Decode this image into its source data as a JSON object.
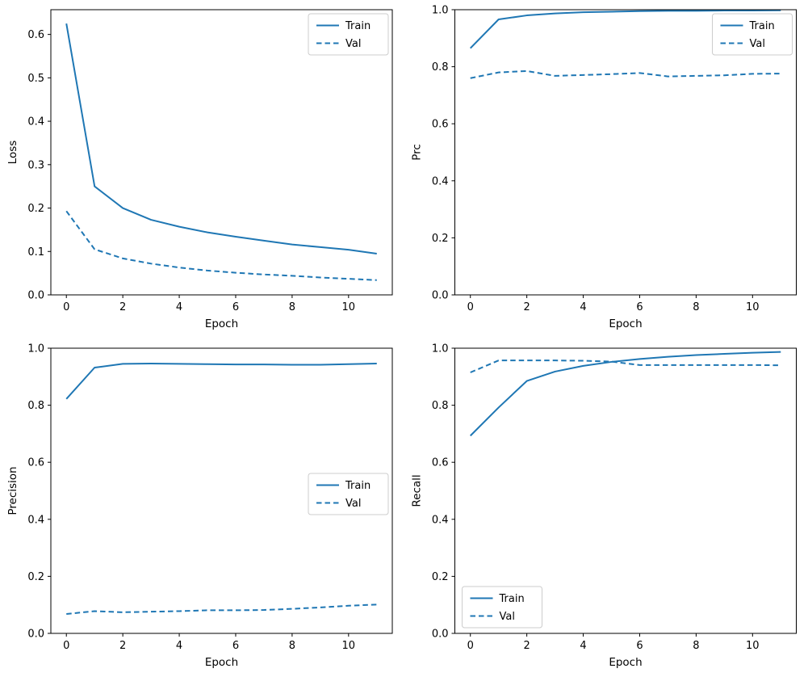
{
  "figure": {
    "background": "#ffffff",
    "line_color": "#1f77b4",
    "legend_border_color": "#cccccc",
    "legend_labels": [
      "Train",
      "Val"
    ]
  },
  "chart_data": [
    {
      "id": "loss",
      "type": "line",
      "title": "",
      "xlabel": "Epoch",
      "ylabel": "Loss",
      "x": [
        0,
        1,
        2,
        3,
        4,
        5,
        6,
        7,
        8,
        9,
        10,
        11
      ],
      "series": [
        {
          "name": "Train",
          "style": "solid",
          "values": [
            0.625,
            0.25,
            0.2,
            0.173,
            0.157,
            0.144,
            0.134,
            0.125,
            0.116,
            0.11,
            0.104,
            0.095
          ]
        },
        {
          "name": "Val",
          "style": "dashed",
          "values": [
            0.193,
            0.105,
            0.084,
            0.072,
            0.063,
            0.056,
            0.051,
            0.047,
            0.044,
            0.04,
            0.037,
            0.034
          ]
        }
      ],
      "xlim": [
        -0.55,
        11.55
      ],
      "ylim": [
        0,
        0.657
      ],
      "xticks": [
        0,
        2,
        4,
        6,
        8,
        10
      ],
      "yticks": [
        0.0,
        0.1,
        0.2,
        0.3,
        0.4,
        0.5,
        0.6
      ],
      "ytick_decimals": 1,
      "grid": false,
      "legend_loc": "upper-right"
    },
    {
      "id": "prc",
      "type": "line",
      "title": "",
      "xlabel": "Epoch",
      "ylabel": "Prc",
      "x": [
        0,
        1,
        2,
        3,
        4,
        5,
        6,
        7,
        8,
        9,
        10,
        11
      ],
      "series": [
        {
          "name": "Train",
          "style": "solid",
          "values": [
            0.865,
            0.966,
            0.98,
            0.987,
            0.991,
            0.993,
            0.995,
            0.996,
            0.996,
            0.997,
            0.997,
            0.998
          ]
        },
        {
          "name": "Val",
          "style": "dashed",
          "values": [
            0.76,
            0.78,
            0.785,
            0.768,
            0.771,
            0.774,
            0.778,
            0.766,
            0.768,
            0.77,
            0.775,
            0.776
          ]
        }
      ],
      "xlim": [
        -0.55,
        11.55
      ],
      "ylim": [
        0,
        1.0
      ],
      "xticks": [
        0,
        2,
        4,
        6,
        8,
        10
      ],
      "yticks": [
        0.0,
        0.2,
        0.4,
        0.6,
        0.8,
        1.0
      ],
      "ytick_decimals": 1,
      "grid": false,
      "legend_loc": "upper-right"
    },
    {
      "id": "precision",
      "type": "line",
      "title": "",
      "xlabel": "Epoch",
      "ylabel": "Precision",
      "x": [
        0,
        1,
        2,
        3,
        4,
        5,
        6,
        7,
        8,
        9,
        10,
        11
      ],
      "series": [
        {
          "name": "Train",
          "style": "solid",
          "values": [
            0.822,
            0.932,
            0.945,
            0.946,
            0.945,
            0.944,
            0.943,
            0.943,
            0.942,
            0.942,
            0.944,
            0.946
          ]
        },
        {
          "name": "Val",
          "style": "dashed",
          "values": [
            0.068,
            0.078,
            0.074,
            0.076,
            0.078,
            0.081,
            0.081,
            0.082,
            0.086,
            0.091,
            0.097,
            0.101
          ]
        }
      ],
      "xlim": [
        -0.55,
        11.55
      ],
      "ylim": [
        0,
        1.0
      ],
      "xticks": [
        0,
        2,
        4,
        6,
        8,
        10
      ],
      "yticks": [
        0.0,
        0.2,
        0.4,
        0.6,
        0.8,
        1.0
      ],
      "ytick_decimals": 1,
      "grid": false,
      "legend_loc": "center-right"
    },
    {
      "id": "recall",
      "type": "line",
      "title": "",
      "xlabel": "Epoch",
      "ylabel": "Recall",
      "x": [
        0,
        1,
        2,
        3,
        4,
        5,
        6,
        7,
        8,
        9,
        10,
        11
      ],
      "series": [
        {
          "name": "Train",
          "style": "solid",
          "values": [
            0.693,
            0.792,
            0.885,
            0.918,
            0.938,
            0.952,
            0.962,
            0.97,
            0.976,
            0.98,
            0.984,
            0.987
          ]
        },
        {
          "name": "Val",
          "style": "dashed",
          "values": [
            0.915,
            0.957,
            0.957,
            0.957,
            0.956,
            0.953,
            0.941,
            0.941,
            0.941,
            0.941,
            0.941,
            0.94
          ]
        }
      ],
      "xlim": [
        -0.55,
        11.55
      ],
      "ylim": [
        0,
        1.0
      ],
      "xticks": [
        0,
        2,
        4,
        6,
        8,
        10
      ],
      "yticks": [
        0.0,
        0.2,
        0.4,
        0.6,
        0.8,
        1.0
      ],
      "ytick_decimals": 1,
      "grid": false,
      "legend_loc": "lower-left"
    }
  ]
}
